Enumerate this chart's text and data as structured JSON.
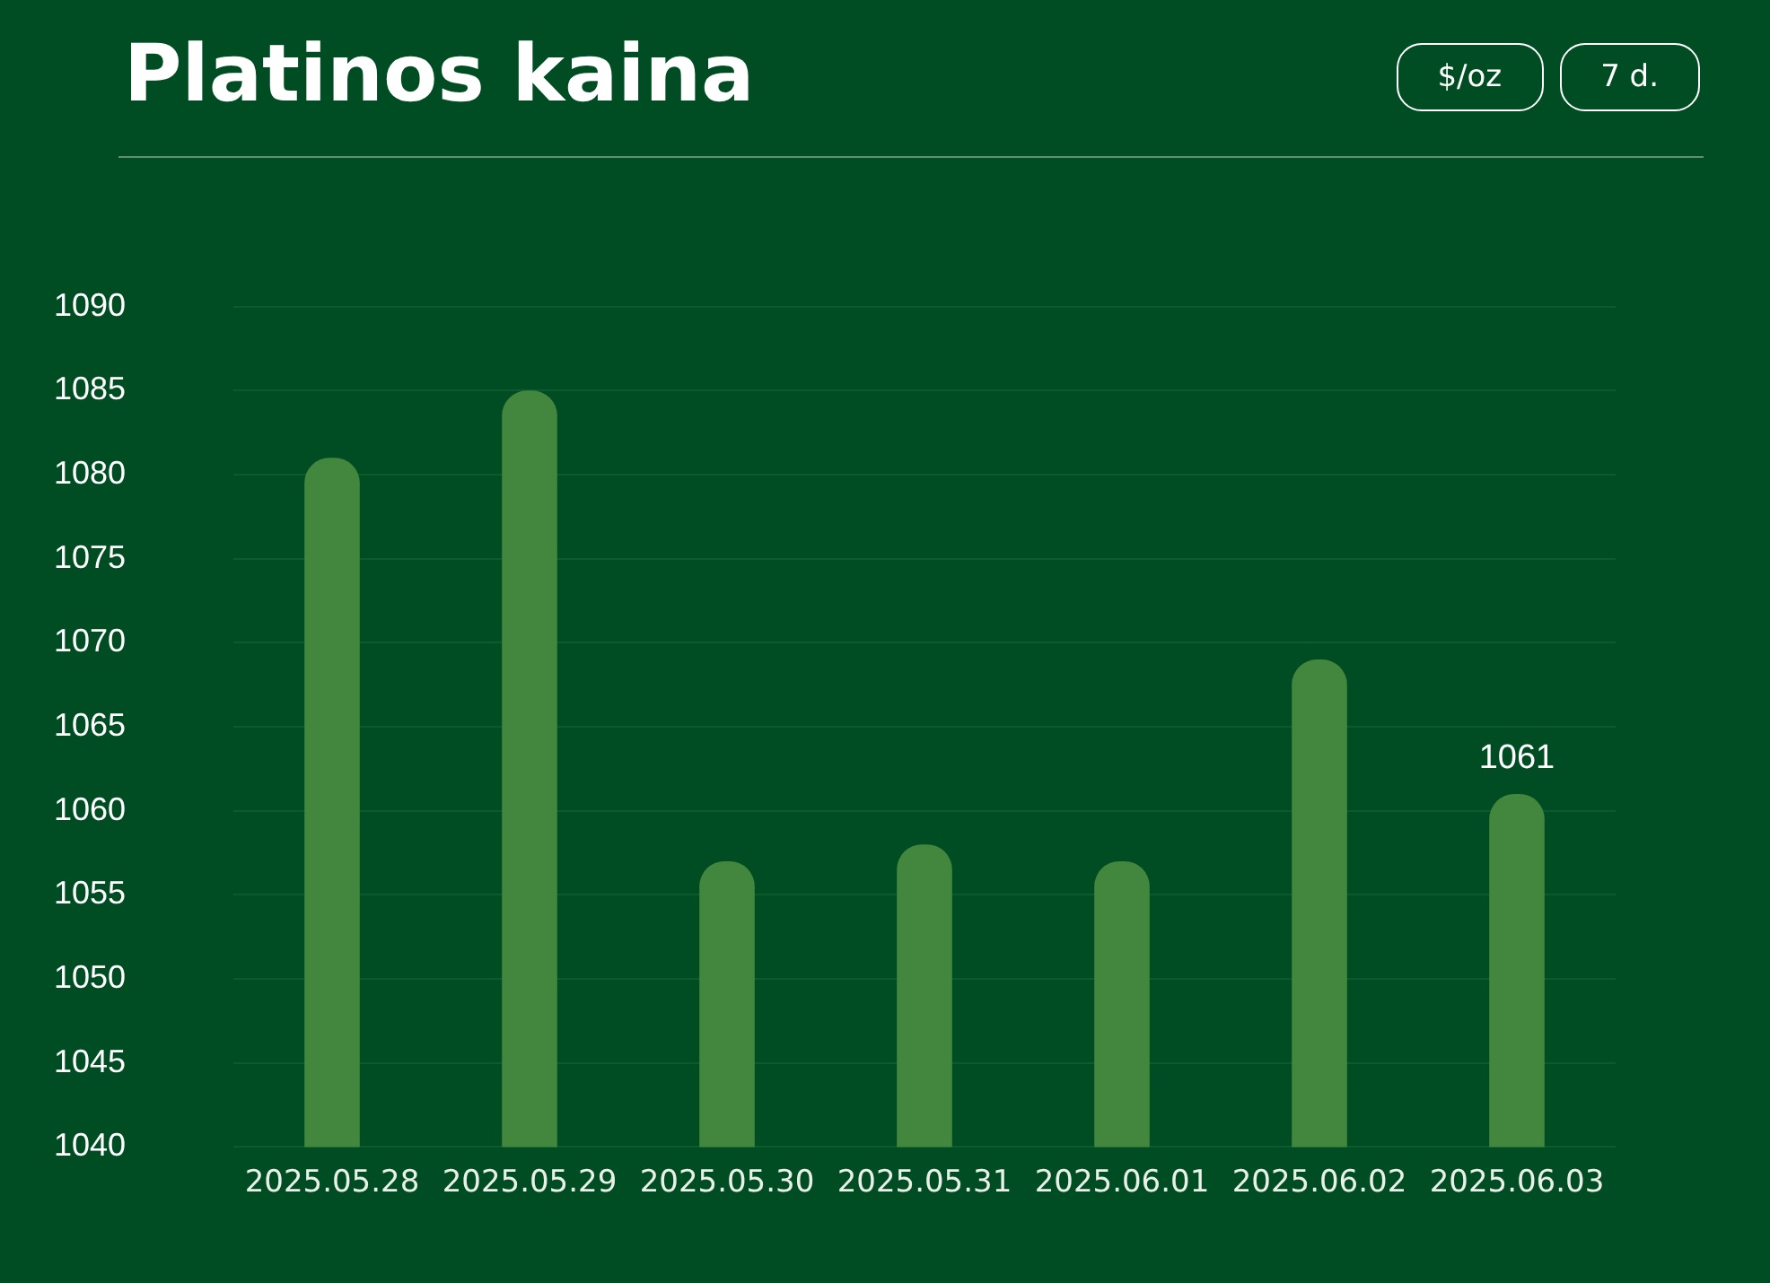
{
  "chart_data": {
    "type": "bar",
    "title": "Platinos kaina",
    "annotations": [
      "$/oz",
      "7 d."
    ],
    "categories": [
      "2025.05.28",
      "2025.05.29",
      "2025.05.30",
      "2025.05.31",
      "2025.06.01",
      "2025.06.02",
      "2025.06.03"
    ],
    "values": [
      1081,
      1085,
      1057,
      1058,
      1057,
      1069,
      1061
    ],
    "value_labels": [
      null,
      null,
      null,
      null,
      null,
      null,
      "1061"
    ],
    "color": "#43873e",
    "ylim": [
      1040,
      1090
    ],
    "yticks": [
      1040,
      1045,
      1050,
      1055,
      1060,
      1065,
      1070,
      1075,
      1080,
      1085,
      1090
    ],
    "grid": "y",
    "legend": false
  }
}
